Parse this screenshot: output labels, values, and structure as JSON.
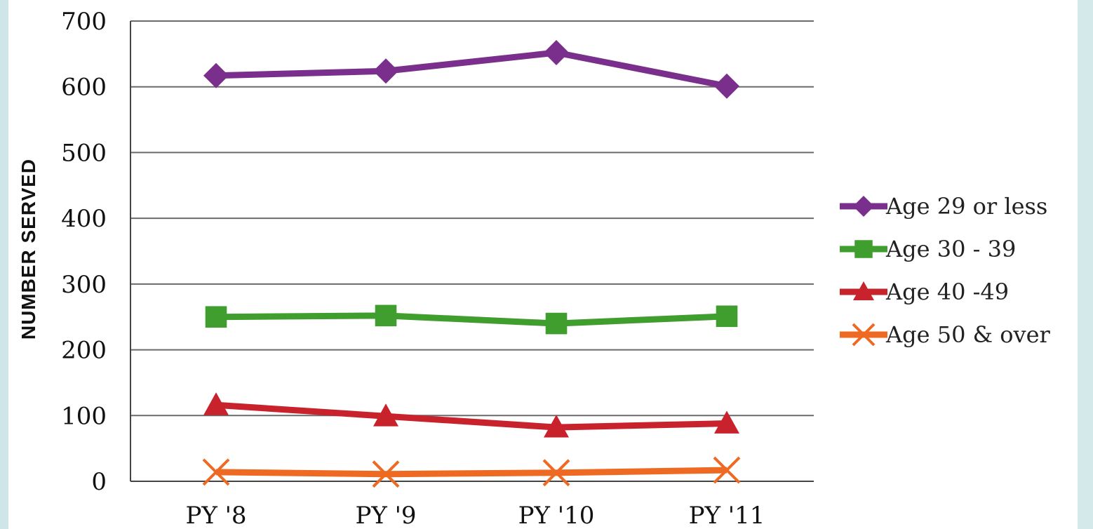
{
  "chart_data": {
    "type": "line",
    "title": "",
    "xlabel": "",
    "ylabel": "NUMBER SERVED",
    "ylim": [
      0,
      700
    ],
    "yticks": [
      "0",
      "100",
      "200",
      "300",
      "400",
      "500",
      "600",
      "700"
    ],
    "categories": [
      "PY '8",
      "PY '9",
      "PY '10",
      "PY '11"
    ],
    "grid": true,
    "legend_position": "right",
    "series": [
      {
        "name": "Age 29 or less",
        "color": "#7b2f8c",
        "marker": "diamond",
        "values": [
          617,
          624,
          652,
          601
        ]
      },
      {
        "name": "Age 30 - 39",
        "color": "#3f9e2e",
        "marker": "square",
        "values": [
          250,
          252,
          240,
          251
        ]
      },
      {
        "name": "Age 40 -49",
        "color": "#c8232c",
        "marker": "triangle",
        "values": [
          116,
          99,
          82,
          88
        ]
      },
      {
        "name": "Age 50 & over",
        "color": "#ee6a22",
        "marker": "x",
        "values": [
          14,
          11,
          13,
          17
        ]
      }
    ]
  }
}
